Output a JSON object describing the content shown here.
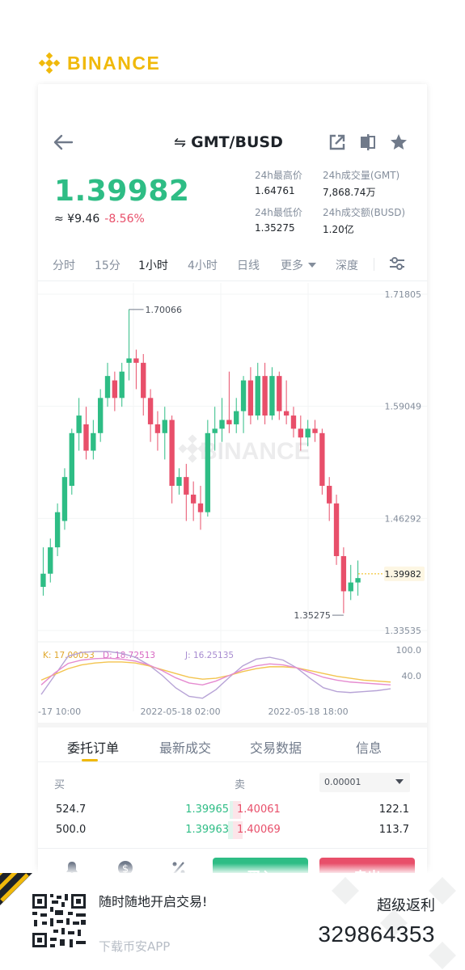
{
  "brand": {
    "name": "BINANCE",
    "color": "#F0B90B"
  },
  "header": {
    "back_icon": "arrow-left-icon",
    "pair_prefix": "⇋",
    "pair": "GMT/BUSD",
    "icons": [
      "external-link-icon",
      "split-view-icon",
      "star-icon"
    ]
  },
  "ticker": {
    "last_price": "1.39982",
    "cny_price": "≈ ¥9.46",
    "change_pct": "-8.56%",
    "high_label": "24h最高价",
    "high": "1.64761",
    "low_label": "24h最低价",
    "low": "1.35275",
    "vol_label": "24h成交量(GMT)",
    "vol": "7,868.74万",
    "amount_label": "24h成交额(BUSD)",
    "amount": "1.20亿"
  },
  "intervals": {
    "items": [
      "分时",
      "15分",
      "1小时",
      "4小时",
      "日线",
      "更多",
      "深度"
    ],
    "active": "1小时",
    "more_caret": "caret-down-icon",
    "settings_icon": "sliders-icon"
  },
  "chart_data": {
    "type": "candlestick",
    "y_axis_labels": [
      "1.71805",
      "1.59049",
      "1.46292",
      "1.33535"
    ],
    "current_price_label": "1.39982",
    "high_marker": "1.70066",
    "low_marker": "1.35275",
    "watermark": "BINANCE",
    "candles": [
      [
        1.385,
        1.4,
        1.43,
        1.375
      ],
      [
        1.4,
        1.43,
        1.44,
        1.39
      ],
      [
        1.43,
        1.47,
        1.48,
        1.42
      ],
      [
        1.46,
        1.51,
        1.52,
        1.45
      ],
      [
        1.5,
        1.56,
        1.565,
        1.49
      ],
      [
        1.56,
        1.58,
        1.6,
        1.54
      ],
      [
        1.57,
        1.54,
        1.59,
        1.53
      ],
      [
        1.54,
        1.56,
        1.575,
        1.53
      ],
      [
        1.56,
        1.6,
        1.61,
        1.55
      ],
      [
        1.6,
        1.625,
        1.64,
        1.59
      ],
      [
        1.62,
        1.6,
        1.63,
        1.585
      ],
      [
        1.6,
        1.63,
        1.64,
        1.59
      ],
      [
        1.64,
        1.645,
        1.701,
        1.62
      ],
      [
        1.645,
        1.64,
        1.655,
        1.61
      ],
      [
        1.64,
        1.6,
        1.65,
        1.58
      ],
      [
        1.6,
        1.57,
        1.61,
        1.55
      ],
      [
        1.57,
        1.56,
        1.585,
        1.54
      ],
      [
        1.56,
        1.575,
        1.59,
        1.53
      ],
      [
        1.575,
        1.5,
        1.58,
        1.48
      ],
      [
        1.5,
        1.51,
        1.52,
        1.49
      ],
      [
        1.51,
        1.49,
        1.525,
        1.46
      ],
      [
        1.49,
        1.48,
        1.505,
        1.46
      ],
      [
        1.48,
        1.47,
        1.5,
        1.45
      ],
      [
        1.47,
        1.56,
        1.575,
        1.465
      ],
      [
        1.56,
        1.565,
        1.59,
        1.54
      ],
      [
        1.565,
        1.575,
        1.6,
        1.55
      ],
      [
        1.575,
        1.57,
        1.63,
        1.56
      ],
      [
        1.57,
        1.585,
        1.6,
        1.56
      ],
      [
        1.585,
        1.62,
        1.625,
        1.56
      ],
      [
        1.62,
        1.58,
        1.635,
        1.57
      ],
      [
        1.58,
        1.625,
        1.64,
        1.575
      ],
      [
        1.625,
        1.58,
        1.64,
        1.57
      ],
      [
        1.58,
        1.625,
        1.635,
        1.575
      ],
      [
        1.625,
        1.585,
        1.63,
        1.575
      ],
      [
        1.585,
        1.58,
        1.62,
        1.57
      ],
      [
        1.58,
        1.565,
        1.59,
        1.555
      ],
      [
        1.565,
        1.555,
        1.58,
        1.54
      ],
      [
        1.555,
        1.565,
        1.575,
        1.545
      ],
      [
        1.565,
        1.56,
        1.575,
        1.55
      ],
      [
        1.56,
        1.5,
        1.565,
        1.49
      ],
      [
        1.5,
        1.48,
        1.51,
        1.46
      ],
      [
        1.48,
        1.42,
        1.49,
        1.41
      ],
      [
        1.42,
        1.38,
        1.43,
        1.355
      ],
      [
        1.38,
        1.39,
        1.41,
        1.37
      ],
      [
        1.39,
        1.395,
        1.415,
        1.375
      ]
    ],
    "kdj": {
      "k_label": "K: 17.00053",
      "d_label": "D: 18.72513",
      "j_label": "J: 16.25135",
      "axis": [
        "100.0",
        "40.0"
      ]
    },
    "x_labels": [
      "-17 10:00",
      "2022-05-18 02:00",
      "2022-05-18 18:00"
    ],
    "colors": {
      "up": "#2ebd85",
      "down": "#e84f6a",
      "k": "#b7a3d6",
      "d": "#f3c44f",
      "j": "#e58bd0"
    }
  },
  "tabs": {
    "items": [
      "委托订单",
      "最新成交",
      "交易数据",
      "信息"
    ],
    "active": "委托订单"
  },
  "orderbook": {
    "buy_label": "买",
    "sell_label": "卖",
    "precision": "0.00001",
    "rows": [
      {
        "buy_qty": "524.7",
        "buy_price": "1.39965",
        "sell_price": "1.40061",
        "sell_qty": "122.1"
      },
      {
        "buy_qty": "500.0",
        "buy_price": "1.39963",
        "sell_price": "1.40069",
        "sell_qty": "113.7"
      }
    ]
  },
  "actions": {
    "icons": [
      "bell-icon",
      "dollar-icon",
      "percent-icon"
    ],
    "buy_label": "买入",
    "sell_label": "卖出"
  },
  "footer": {
    "slogan": "随时随地开启交易!",
    "download": "下载币安APP",
    "rebate": "超级返利",
    "code": "329864353",
    "qr_icon": "qr-code-icon"
  }
}
